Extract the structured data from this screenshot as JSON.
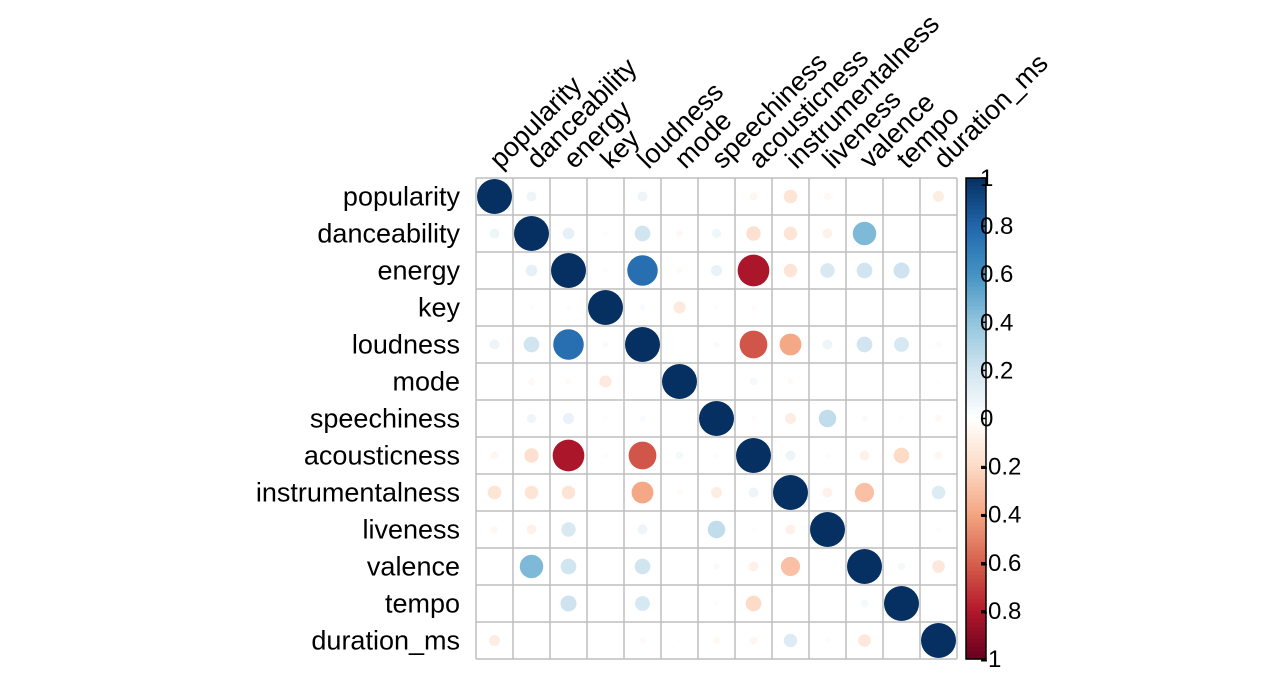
{
  "chart_data": {
    "type": "heatmap",
    "variables": [
      "popularity",
      "danceability",
      "energy",
      "key",
      "loudness",
      "mode",
      "speechiness",
      "acousticness",
      "instrumentalness",
      "liveness",
      "valence",
      "tempo",
      "duration_ms"
    ],
    "matrix": [
      [
        1,
        0.08,
        0.01,
        0,
        0.08,
        0.01,
        0.01,
        -0.05,
        -0.15,
        -0.04,
        0.01,
        0.01,
        -0.1
      ],
      [
        0.08,
        1,
        0.11,
        0.02,
        0.2,
        -0.04,
        0.07,
        -0.17,
        -0.15,
        -0.08,
        0.45,
        0.01,
        0.01
      ],
      [
        0.01,
        0.11,
        1,
        0.02,
        0.76,
        -0.03,
        0.1,
        -0.82,
        -0.15,
        0.17,
        0.2,
        0.21,
        0.01
      ],
      [
        0,
        0.02,
        0.02,
        1,
        0.03,
        -0.12,
        0.02,
        -0.02,
        0,
        0,
        0.01,
        0,
        0
      ],
      [
        0.08,
        0.2,
        0.76,
        0.03,
        1,
        0.01,
        0.03,
        -0.63,
        -0.39,
        0.08,
        0.2,
        0.18,
        -0.03
      ],
      [
        0.01,
        -0.04,
        -0.03,
        -0.12,
        0.01,
        1,
        0.01,
        0.05,
        -0.03,
        0.01,
        0.01,
        0.01,
        -0.01
      ],
      [
        0.01,
        0.07,
        0.1,
        0.02,
        0.03,
        0.01,
        1,
        -0.02,
        -0.1,
        0.25,
        0.03,
        0.02,
        -0.04
      ],
      [
        -0.05,
        -0.17,
        -0.82,
        -0.02,
        -0.63,
        0.05,
        -0.02,
        1,
        0.08,
        -0.02,
        -0.08,
        -0.2,
        -0.05
      ],
      [
        -0.15,
        -0.15,
        -0.15,
        0,
        -0.39,
        -0.03,
        -0.1,
        0.08,
        1,
        -0.08,
        -0.3,
        0.01,
        0.15
      ],
      [
        -0.04,
        -0.08,
        0.17,
        0,
        0.08,
        0.01,
        0.25,
        -0.02,
        -0.08,
        1,
        0.01,
        0.01,
        0.02
      ],
      [
        0.01,
        0.45,
        0.2,
        0.01,
        0.2,
        0.01,
        0.03,
        -0.08,
        -0.3,
        0.01,
        1,
        0.05,
        -0.13
      ],
      [
        0.01,
        0.01,
        0.21,
        0,
        0.18,
        0.01,
        0.02,
        -0.2,
        0.01,
        0.01,
        0.05,
        1,
        0.01
      ],
      [
        -0.1,
        0.01,
        0.01,
        0,
        -0.03,
        -0.01,
        -0.04,
        -0.05,
        0.15,
        0.02,
        -0.13,
        0.01,
        1
      ]
    ],
    "colorbar": {
      "ticks": [
        "1",
        "0.8",
        "0.6",
        "0.4",
        "0.2",
        "0",
        "-0.2",
        "-0.4",
        "-0.6",
        "-0.8",
        "-1"
      ],
      "range": [
        -1,
        1
      ],
      "colors": [
        "#67001F",
        "#B2182B",
        "#D6604D",
        "#F4A582",
        "#FDDBC7",
        "#FFFFFF",
        "#D1E5F0",
        "#92C5DE",
        "#4393C3",
        "#2166AC",
        "#053061"
      ]
    },
    "grid": true
  }
}
